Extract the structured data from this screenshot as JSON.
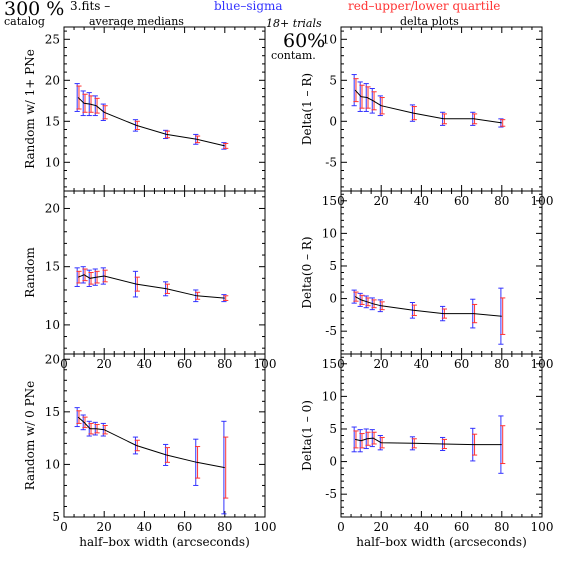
{
  "header": {
    "percent": "300 %",
    "catalog": "catalog",
    "fits": "3.fits  –",
    "avg": "average medians",
    "blue": "blue–sigma",
    "red": "red–upper/lower quartile",
    "trials": "18+ trials",
    "delta": "delta plots",
    "contam_pct": "60%",
    "contam": "contam."
  },
  "colors": {
    "line": "#000000",
    "sigma": "#3333ff",
    "quartile": "#ff3333",
    "frame": "#000000"
  },
  "chart_data": [
    {
      "type": "line",
      "ylabel": "Random w/ 1+ PNe",
      "xlabel": "",
      "xlim": [
        0,
        100
      ],
      "ylim": [
        6.5,
        26.5
      ],
      "xticks": [
        0,
        20,
        40,
        60,
        80,
        100
      ],
      "yticks": [
        10,
        15,
        20,
        25
      ],
      "x_ticklabels_shown": false,
      "x": [
        7,
        10,
        13,
        16,
        20,
        36,
        51,
        66,
        80
      ],
      "y": [
        17.9,
        17.2,
        17.1,
        16.9,
        16.1,
        14.5,
        13.4,
        12.8,
        12.0
      ],
      "sigma": [
        1.7,
        1.5,
        1.4,
        1.2,
        1.0,
        0.7,
        0.5,
        0.6,
        0.4
      ],
      "quartile": [
        1.4,
        1.1,
        1.0,
        0.9,
        0.8,
        0.5,
        0.4,
        0.4,
        0.3
      ]
    },
    {
      "type": "line",
      "ylabel": "Delta(1 – R)",
      "xlabel": "",
      "xlim": [
        0,
        100
      ],
      "ylim": [
        -8.5,
        11.5
      ],
      "xticks": [
        0,
        20,
        40,
        60,
        80,
        100
      ],
      "yticks": [
        -5,
        0,
        5,
        10
      ],
      "x_ticklabels_shown": true,
      "x": [
        7,
        10,
        13,
        16,
        20,
        36,
        51,
        66,
        80
      ],
      "y": [
        3.8,
        3.0,
        2.9,
        2.5,
        1.9,
        1.0,
        0.3,
        0.3,
        -0.2
      ],
      "sigma": [
        1.9,
        1.8,
        1.7,
        1.5,
        1.2,
        1.0,
        0.8,
        0.8,
        0.5
      ],
      "quartile": [
        1.4,
        1.4,
        1.3,
        1.1,
        1.0,
        0.8,
        0.6,
        0.6,
        0.4
      ]
    },
    {
      "type": "line",
      "ylabel": "Random",
      "xlabel": "",
      "xlim": [
        0,
        100
      ],
      "ylim": [
        7.5,
        21.5
      ],
      "xticks": [
        0,
        20,
        40,
        60,
        80,
        100
      ],
      "yticks": [
        10,
        15,
        20
      ],
      "x_ticklabels_shown": true,
      "x": [
        7,
        10,
        13,
        16,
        20,
        36,
        51,
        66,
        80
      ],
      "y": [
        14.1,
        14.3,
        14.0,
        14.1,
        14.2,
        13.5,
        13.1,
        12.5,
        12.3
      ],
      "sigma": [
        0.8,
        0.7,
        0.7,
        0.7,
        0.7,
        1.1,
        0.6,
        0.5,
        0.3
      ],
      "quartile": [
        0.5,
        0.5,
        0.5,
        0.5,
        0.5,
        0.6,
        0.4,
        0.3,
        0.2
      ]
    },
    {
      "type": "line",
      "ylabel": "Delta(0 – R)",
      "xlabel": "",
      "xlim": [
        0,
        100
      ],
      "ylim": [
        -8.5,
        16.5
      ],
      "xticks": [
        0,
        20,
        40,
        60,
        80,
        100
      ],
      "yticks": [
        -5,
        0,
        5,
        10,
        15
      ],
      "x_ticklabels_shown": true,
      "x": [
        7,
        10,
        13,
        16,
        20,
        36,
        51,
        66,
        80
      ],
      "y": [
        0.3,
        -0.2,
        -0.5,
        -0.8,
        -1.1,
        -1.8,
        -2.3,
        -2.3,
        -2.7
      ],
      "sigma": [
        1.0,
        1.0,
        0.9,
        0.9,
        0.9,
        1.2,
        1.1,
        2.2,
        4.3
      ],
      "quartile": [
        0.7,
        0.7,
        0.6,
        0.6,
        0.6,
        0.8,
        0.7,
        1.4,
        2.8
      ]
    },
    {
      "type": "line",
      "ylabel": "Random w/ 0 PNe",
      "xlabel": "half–box width (arcseconds)",
      "xlim": [
        0,
        100
      ],
      "ylim": [
        5,
        20.5
      ],
      "xticks": [
        0,
        20,
        40,
        60,
        80,
        100
      ],
      "yticks": [
        5,
        10,
        15,
        20
      ],
      "x_ticklabels_shown": true,
      "x": [
        7,
        10,
        13,
        16,
        20,
        36,
        51,
        66,
        80
      ],
      "y": [
        14.5,
        14.0,
        13.4,
        13.4,
        13.3,
        11.8,
        10.9,
        10.2,
        9.7
      ],
      "sigma": [
        0.9,
        0.7,
        0.7,
        0.6,
        0.6,
        0.8,
        1.0,
        2.2,
        4.4
      ],
      "quartile": [
        0.6,
        0.5,
        0.5,
        0.4,
        0.4,
        0.5,
        0.7,
        1.5,
        2.9
      ]
    },
    {
      "type": "line",
      "ylabel": "Delta(1 – 0)",
      "xlabel": "half–box width (arcseconds)",
      "xlim": [
        0,
        100
      ],
      "ylim": [
        -8.5,
        16.5
      ],
      "xticks": [
        0,
        20,
        40,
        60,
        80,
        100
      ],
      "yticks": [
        -5,
        0,
        5,
        10,
        15
      ],
      "x_ticklabels_shown": true,
      "x": [
        7,
        10,
        13,
        16,
        20,
        36,
        51,
        66,
        80
      ],
      "y": [
        3.4,
        3.2,
        3.5,
        3.6,
        2.9,
        2.8,
        2.7,
        2.6,
        2.6
      ],
      "sigma": [
        1.9,
        1.7,
        1.5,
        1.3,
        1.1,
        1.0,
        1.0,
        2.5,
        4.4
      ],
      "quartile": [
        1.3,
        1.1,
        1.0,
        0.9,
        0.8,
        0.7,
        0.7,
        1.6,
        2.9
      ]
    }
  ]
}
